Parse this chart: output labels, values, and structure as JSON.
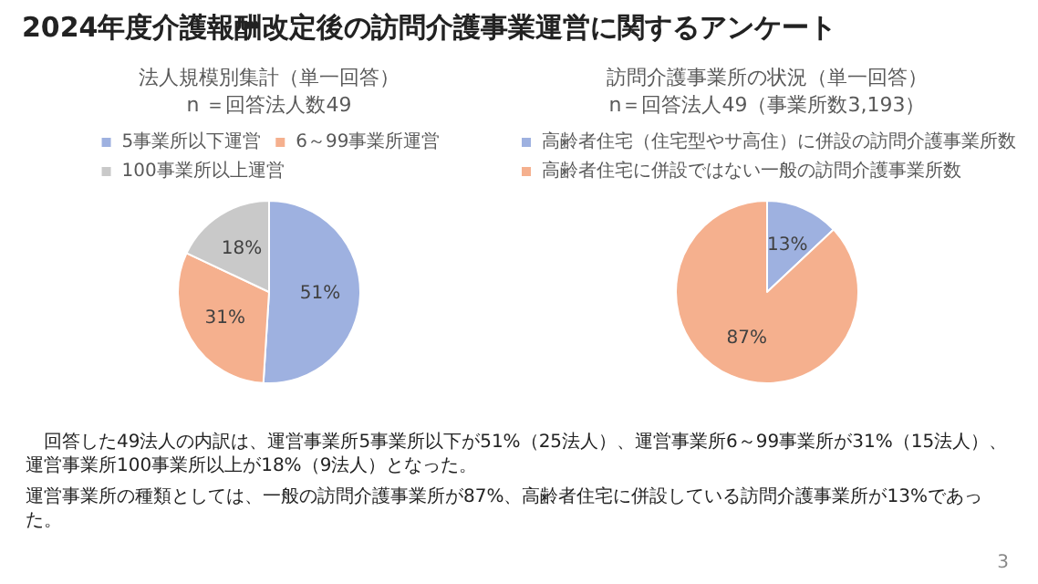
{
  "chart_data": [
    {
      "type": "pie",
      "title": "法人規模別集計（単一回答）",
      "subtitle": "n ＝回答法人数49",
      "legend": "top",
      "categories": [
        "5事業所以下運営",
        "6～99事業所運営",
        "100事業所以上運営"
      ],
      "values": [
        51,
        31,
        18
      ],
      "value_labels": [
        "51%",
        "31%",
        "18%"
      ],
      "colors": [
        "#9eb1e0",
        "#f5b08e",
        "#c9c9c9"
      ]
    },
    {
      "type": "pie",
      "title": "訪問介護事業所の状況（単一回答）",
      "subtitle": "n＝回答法人49（事業所数3,193）",
      "legend": "top",
      "categories": [
        "高齢者住宅（住宅型やサ高住）に併設の訪問介護事業所数",
        "高齢者住宅に併設ではない一般の訪問介護事業所数"
      ],
      "values": [
        13,
        87
      ],
      "value_labels": [
        "13%",
        "87%"
      ],
      "colors": [
        "#9eb1e0",
        "#f5b08e"
      ]
    },
    {
      "type": "other",
      "title": "2024年度介護報酬改定後の訪問介護事業運営に関するアンケート",
      "annotations": [
        "回答した49法人の内訳は、運営事業所5事業所以下が51%（25法人）、運営事業所6～99事業所が31%（15法人）、運営事業所100事業所以上が18%（9法人）となった。",
        "運営事業所の種類としては、一般の訪問介護事業所が87%、高齢者住宅に併設している訪問介護事業所が13%であった。",
        "3"
      ]
    }
  ]
}
